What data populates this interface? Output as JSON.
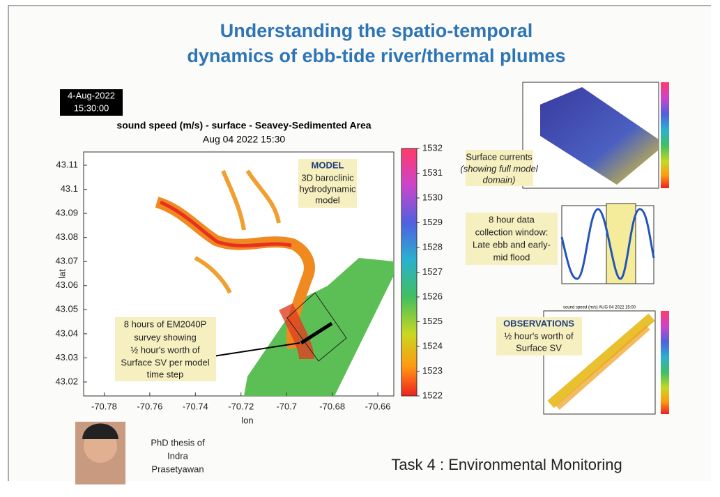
{
  "title_lines": [
    "Understanding the spatio-temporal",
    "dynamics of ebb-tide river/thermal plumes"
  ],
  "timestamp": [
    "4-Aug-2022",
    "15:30:00"
  ],
  "main_map": {
    "title": "sound speed (m/s) - surface - Seavey-Sedimented Area",
    "subtitle": "Aug 04 2022 15:30",
    "xlabel": "lon",
    "ylabel": "lat",
    "xlim": [
      -70.789,
      -70.653
    ],
    "xticks": [
      -70.78,
      -70.76,
      -70.74,
      -70.72,
      -70.7,
      -70.68,
      -70.66
    ],
    "ylim": [
      43.0142,
      43.1155
    ],
    "yticks": [
      43.02,
      43.03,
      43.04,
      43.05,
      43.06,
      43.07,
      43.08,
      43.09,
      43.1,
      43.11
    ],
    "colorbar_lim": [
      1522,
      1532
    ],
    "colorbar_ticks": [
      1522,
      1523,
      1524,
      1525,
      1526,
      1527,
      1528,
      1529,
      1530,
      1531,
      1532
    ]
  },
  "model_note": [
    "MODEL",
    "3D baroclinic",
    "hydrodynamic",
    "model"
  ],
  "survey_note": [
    "8 hours of EM2040P",
    "survey showing",
    "½ hour's worth of",
    "Surface SV per model",
    "time step"
  ],
  "currents_note": [
    "Surface currents",
    "(showing full model",
    "domain)"
  ],
  "window_note": [
    "8 hour data",
    "collection window:",
    "Late ebb and early-",
    "mid flood"
  ],
  "observations_note": [
    "OBSERVATIONS",
    "½ hour's worth of",
    "Surface SV"
  ],
  "observations_inset_title": "sound speed (m/s) AUG 04 2022 15:00",
  "credit": [
    "PhD thesis of",
    "Indra",
    "Prasetyawan"
  ],
  "task": "Task 4 : Environmental Monitoring"
}
